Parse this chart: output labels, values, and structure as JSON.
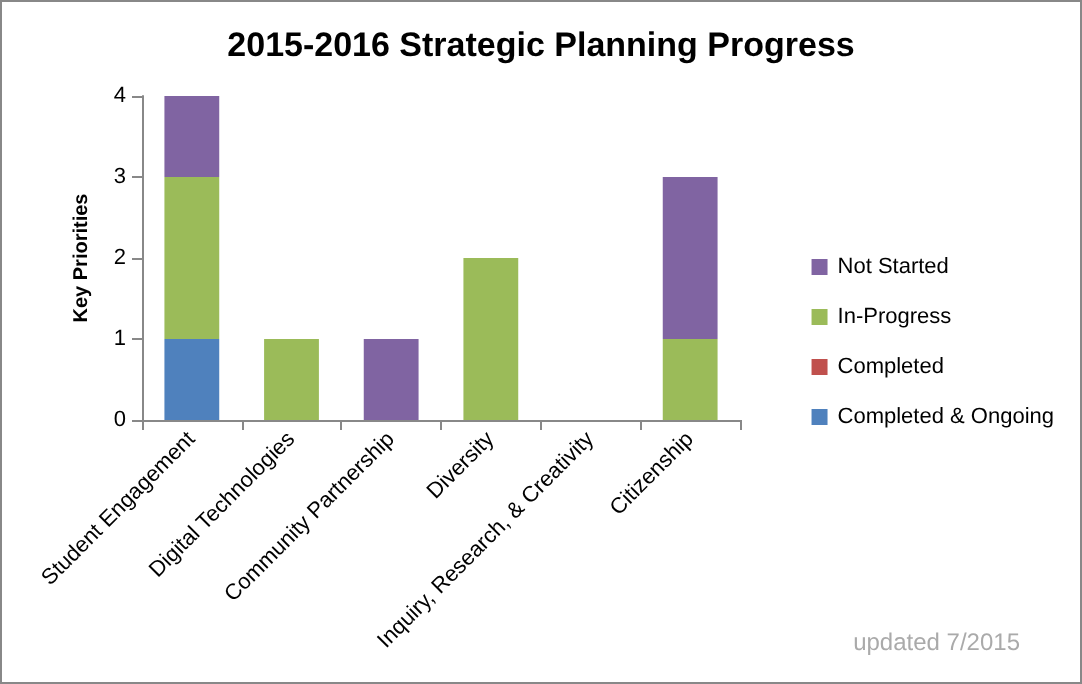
{
  "chart_data": {
    "type": "bar",
    "title": "2015-2016 Strategic Planning Progress",
    "ylabel": "Key Priorities",
    "categories": [
      "Student Engagement",
      "Digital Technologies",
      "Community Partnership",
      "Diversity",
      "Inquiry, Research, & Creativity",
      "Citizenship"
    ],
    "stacked": true,
    "series": [
      {
        "name": "Completed & Ongoing",
        "color": "#4f81bd",
        "values": [
          1,
          0,
          0,
          0,
          0,
          0
        ]
      },
      {
        "name": "Completed",
        "color": "#c0504d",
        "values": [
          0,
          0,
          0,
          0,
          0,
          0
        ]
      },
      {
        "name": "In-Progress",
        "color": "#9bbb59",
        "values": [
          2,
          1,
          0,
          2,
          0,
          1
        ]
      },
      {
        "name": "Not Started",
        "color": "#8064a2",
        "values": [
          1,
          0,
          1,
          0,
          0,
          2
        ]
      }
    ],
    "ylim": [
      0,
      4
    ],
    "yticks": [
      0,
      1,
      2,
      3,
      4
    ],
    "grid": false,
    "legend": "right",
    "annotations": [
      "updated 7/2015"
    ]
  }
}
